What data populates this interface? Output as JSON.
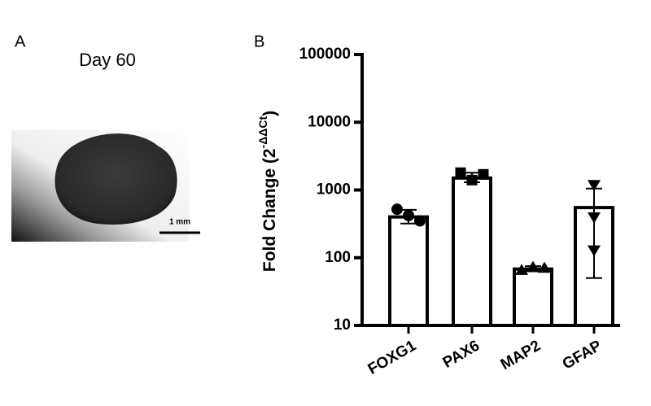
{
  "panel_a": {
    "label": "A",
    "title": "Day 60",
    "scale_bar": "1 mm"
  },
  "chart_data": {
    "type": "bar",
    "panel_label": "B",
    "ylabel": {
      "text": "Fold Change (2",
      "superscript": "-ΔΔCt",
      "close": ")"
    },
    "categories": [
      "FOXG1",
      "PAX6",
      "MAP2",
      "GFAP"
    ],
    "values": [
      400,
      1500,
      68,
      550
    ],
    "error_low": [
      320,
      1300,
      63,
      50
    ],
    "error_high": [
      510,
      1800,
      75,
      1050
    ],
    "points": [
      [
        520,
        420,
        350
      ],
      [
        1800,
        1400,
        1700
      ],
      [
        65,
        72,
        70
      ],
      [
        1200,
        400,
        130
      ]
    ],
    "markers": [
      "circle",
      "square",
      "triangle",
      "triangle-down"
    ],
    "color": "#ffffff",
    "edge_color": "#000000",
    "log_scale": true,
    "ylim": [
      10,
      100000
    ],
    "yticks": [
      10,
      100,
      1000,
      10000,
      100000
    ]
  }
}
